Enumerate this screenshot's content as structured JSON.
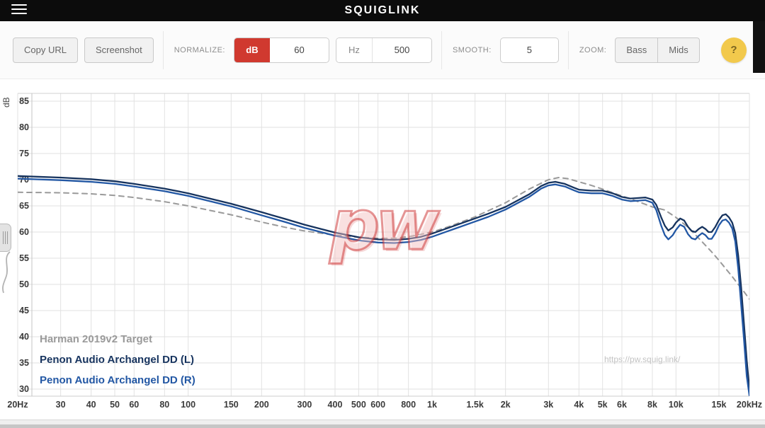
{
  "header": {
    "title": "SQUIGLINK"
  },
  "toolbar": {
    "copy_url_label": "Copy URL",
    "screenshot_label": "Screenshot",
    "normalize_label": "NORMALIZE:",
    "db_button_label": "dB",
    "db_value": "60",
    "hz_button_label": "Hz",
    "hz_value": "500",
    "smooth_label": "SMOOTH:",
    "smooth_value": "5",
    "zoom_label": "ZOOM:",
    "zoom_bass_label": "Bass",
    "zoom_mids_label": "Mids",
    "help_label": "?",
    "db_active_color": "#d0392f",
    "help_color": "#f2c94c"
  },
  "watermark_text": "pw",
  "site_link": "https://pw.squig.link/",
  "chart_data": {
    "type": "line",
    "x_scale": "log",
    "xlim": [
      20,
      20000
    ],
    "ylim": [
      30,
      85
    ],
    "ylabel": "dB",
    "grid": true,
    "legend_position": "bottom-left",
    "yticks": [
      85,
      80,
      75,
      70,
      65,
      60,
      55,
      50,
      45,
      40,
      35,
      30
    ],
    "xticks": [
      {
        "f": 20,
        "label": "20Hz"
      },
      {
        "f": 30,
        "label": "30"
      },
      {
        "f": 40,
        "label": "40"
      },
      {
        "f": 50,
        "label": "50"
      },
      {
        "f": 60,
        "label": "60"
      },
      {
        "f": 80,
        "label": "80"
      },
      {
        "f": 100,
        "label": "100"
      },
      {
        "f": 150,
        "label": "150"
      },
      {
        "f": 200,
        "label": "200"
      },
      {
        "f": 300,
        "label": "300"
      },
      {
        "f": 400,
        "label": "400"
      },
      {
        "f": 500,
        "label": "500"
      },
      {
        "f": 600,
        "label": "600"
      },
      {
        "f": 800,
        "label": "800"
      },
      {
        "f": 1000,
        "label": "1k"
      },
      {
        "f": 1500,
        "label": "1.5k"
      },
      {
        "f": 2000,
        "label": "2k"
      },
      {
        "f": 3000,
        "label": "3k"
      },
      {
        "f": 4000,
        "label": "4k"
      },
      {
        "f": 5000,
        "label": "5k"
      },
      {
        "f": 6000,
        "label": "6k"
      },
      {
        "f": 8000,
        "label": "8k"
      },
      {
        "f": 10000,
        "label": "10k"
      },
      {
        "f": 15000,
        "label": "15k"
      },
      {
        "f": 20000,
        "label": "20kHz"
      }
    ],
    "series": [
      {
        "name": "Harman 2019v2 Target",
        "color": "#9a9a9a",
        "style": "dashed",
        "points": [
          [
            20,
            67.6
          ],
          [
            30,
            67.5
          ],
          [
            40,
            67.3
          ],
          [
            50,
            67.0
          ],
          [
            60,
            66.6
          ],
          [
            80,
            65.8
          ],
          [
            100,
            65.0
          ],
          [
            150,
            63.3
          ],
          [
            200,
            61.9
          ],
          [
            250,
            60.9
          ],
          [
            300,
            60.2
          ],
          [
            400,
            59.4
          ],
          [
            500,
            59.0
          ],
          [
            600,
            58.8
          ],
          [
            700,
            58.8
          ],
          [
            800,
            59.1
          ],
          [
            1000,
            60.0
          ],
          [
            1200,
            61.2
          ],
          [
            1500,
            62.9
          ],
          [
            2000,
            65.6
          ],
          [
            2500,
            68.2
          ],
          [
            3000,
            70.0
          ],
          [
            3300,
            70.4
          ],
          [
            3600,
            70.2
          ],
          [
            4000,
            69.6
          ],
          [
            4500,
            68.9
          ],
          [
            5000,
            68.2
          ],
          [
            5500,
            67.5
          ],
          [
            6000,
            66.9
          ],
          [
            7000,
            65.8
          ],
          [
            8000,
            64.8
          ],
          [
            9000,
            64.2
          ],
          [
            10000,
            62.8
          ],
          [
            11000,
            61.2
          ],
          [
            12000,
            59.5
          ],
          [
            13000,
            57.8
          ],
          [
            14000,
            56.2
          ],
          [
            15000,
            54.6
          ],
          [
            16000,
            53.0
          ],
          [
            17000,
            51.5
          ],
          [
            18000,
            50.0
          ],
          [
            19000,
            48.6
          ],
          [
            20000,
            47.2
          ]
        ]
      },
      {
        "name": "Penon Audio Archangel DD (L)",
        "color": "#16335e",
        "style": "solid",
        "points": [
          [
            20,
            70.7
          ],
          [
            30,
            70.4
          ],
          [
            40,
            70.1
          ],
          [
            50,
            69.7
          ],
          [
            60,
            69.2
          ],
          [
            80,
            68.3
          ],
          [
            100,
            67.4
          ],
          [
            150,
            65.4
          ],
          [
            200,
            63.8
          ],
          [
            250,
            62.5
          ],
          [
            300,
            61.4
          ],
          [
            350,
            60.6
          ],
          [
            400,
            59.9
          ],
          [
            500,
            59.0
          ],
          [
            600,
            58.6
          ],
          [
            700,
            58.5
          ],
          [
            800,
            58.7
          ],
          [
            900,
            59.1
          ],
          [
            1000,
            59.7
          ],
          [
            1200,
            61.0
          ],
          [
            1500,
            62.6
          ],
          [
            1700,
            63.5
          ],
          [
            2000,
            64.8
          ],
          [
            2500,
            67.2
          ],
          [
            2800,
            68.8
          ],
          [
            3000,
            69.4
          ],
          [
            3200,
            69.6
          ],
          [
            3500,
            69.2
          ],
          [
            3800,
            68.5
          ],
          [
            4000,
            68.1
          ],
          [
            4500,
            67.9
          ],
          [
            5000,
            67.9
          ],
          [
            5500,
            67.4
          ],
          [
            6000,
            66.7
          ],
          [
            6500,
            66.4
          ],
          [
            7000,
            66.5
          ],
          [
            7500,
            66.6
          ],
          [
            8000,
            66.2
          ],
          [
            8300,
            65.2
          ],
          [
            8700,
            62.8
          ],
          [
            9000,
            61.2
          ],
          [
            9300,
            60.3
          ],
          [
            9700,
            60.9
          ],
          [
            10000,
            61.8
          ],
          [
            10400,
            62.6
          ],
          [
            10800,
            62.2
          ],
          [
            11200,
            61.0
          ],
          [
            11600,
            60.2
          ],
          [
            12000,
            60.0
          ],
          [
            12400,
            60.6
          ],
          [
            12800,
            61.0
          ],
          [
            13200,
            60.6
          ],
          [
            13600,
            60.0
          ],
          [
            14000,
            60.0
          ],
          [
            14500,
            61.0
          ],
          [
            15000,
            62.3
          ],
          [
            15500,
            63.2
          ],
          [
            16000,
            63.4
          ],
          [
            16500,
            62.8
          ],
          [
            17000,
            61.8
          ],
          [
            17500,
            59.8
          ],
          [
            18000,
            55.5
          ],
          [
            18500,
            49.5
          ],
          [
            19000,
            42.5
          ],
          [
            19500,
            35.5
          ],
          [
            20000,
            30.0
          ]
        ]
      },
      {
        "name": "Penon Audio Archangel DD (R)",
        "color": "#2257a4",
        "style": "solid",
        "points": [
          [
            20,
            70.2
          ],
          [
            30,
            69.9
          ],
          [
            40,
            69.6
          ],
          [
            50,
            69.2
          ],
          [
            60,
            68.7
          ],
          [
            80,
            67.8
          ],
          [
            100,
            66.9
          ],
          [
            150,
            64.9
          ],
          [
            200,
            63.2
          ],
          [
            250,
            61.9
          ],
          [
            300,
            60.8
          ],
          [
            350,
            60.0
          ],
          [
            400,
            59.3
          ],
          [
            500,
            58.4
          ],
          [
            600,
            58.0
          ],
          [
            700,
            57.9
          ],
          [
            800,
            58.1
          ],
          [
            900,
            58.5
          ],
          [
            1000,
            59.1
          ],
          [
            1200,
            60.4
          ],
          [
            1500,
            62.0
          ],
          [
            1700,
            62.9
          ],
          [
            2000,
            64.3
          ],
          [
            2500,
            66.7
          ],
          [
            2800,
            68.3
          ],
          [
            3000,
            68.9
          ],
          [
            3200,
            69.1
          ],
          [
            3500,
            68.7
          ],
          [
            3800,
            68.0
          ],
          [
            4000,
            67.6
          ],
          [
            4500,
            67.4
          ],
          [
            5000,
            67.4
          ],
          [
            5500,
            66.9
          ],
          [
            6000,
            66.2
          ],
          [
            6500,
            65.9
          ],
          [
            7000,
            66.0
          ],
          [
            7500,
            66.1
          ],
          [
            8000,
            65.6
          ],
          [
            8300,
            64.2
          ],
          [
            8700,
            61.2
          ],
          [
            9000,
            59.4
          ],
          [
            9300,
            58.6
          ],
          [
            9700,
            59.4
          ],
          [
            10000,
            60.4
          ],
          [
            10400,
            61.4
          ],
          [
            10800,
            61.0
          ],
          [
            11200,
            59.6
          ],
          [
            11600,
            58.8
          ],
          [
            12000,
            58.6
          ],
          [
            12400,
            59.3
          ],
          [
            12800,
            59.8
          ],
          [
            13200,
            59.4
          ],
          [
            13600,
            58.7
          ],
          [
            14000,
            58.7
          ],
          [
            14500,
            59.8
          ],
          [
            15000,
            61.3
          ],
          [
            15500,
            62.2
          ],
          [
            16000,
            62.4
          ],
          [
            16500,
            61.8
          ],
          [
            17000,
            60.7
          ],
          [
            17500,
            58.2
          ],
          [
            18000,
            53.0
          ],
          [
            19000,
            39.5
          ],
          [
            19500,
            32.5
          ],
          [
            20000,
            28.8
          ]
        ]
      }
    ]
  }
}
